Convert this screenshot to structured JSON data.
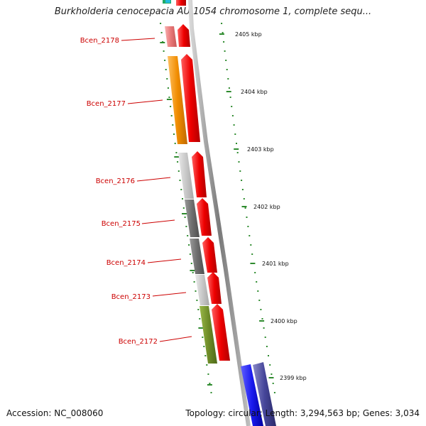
{
  "title": "Burkholderia cenocepacia AU 1054 chromosome 1, complete sequ...",
  "footer": {
    "accession": "Accession: NC_008060",
    "summary": "Topology: circular; Length: 3,294,563 bp; Genes: 3,034"
  },
  "colors": {
    "gene_label": "#cc0000",
    "scale_tick": "#2e8b2e",
    "arrow": "#ee0000",
    "orange": "#f08c00",
    "pink": "#e87878",
    "light_gray": "#c8c8c8",
    "dark_gray": "#6e6e6e",
    "olive": "#6e8c28",
    "blue": "#1a1aee",
    "navy": "#46469a"
  },
  "scale_labels": [
    "2405 kbp",
    "2404 kbp",
    "2403 kbp",
    "2402 kbp",
    "2401 kbp",
    "2400 kbp",
    "2399 kbp"
  ],
  "genes": [
    {
      "label": "Bcen_2178",
      "color": "pink"
    },
    {
      "label": "Bcen_2177",
      "color": "orange"
    },
    {
      "label": "Bcen_2176",
      "color": "light_gray"
    },
    {
      "label": "Bcen_2175",
      "color": "dark_gray"
    },
    {
      "label": "Bcen_2174",
      "color": "dark_gray"
    },
    {
      "label": "Bcen_2173",
      "color": "light_gray"
    },
    {
      "label": "Bcen_2172",
      "color": "olive"
    }
  ]
}
